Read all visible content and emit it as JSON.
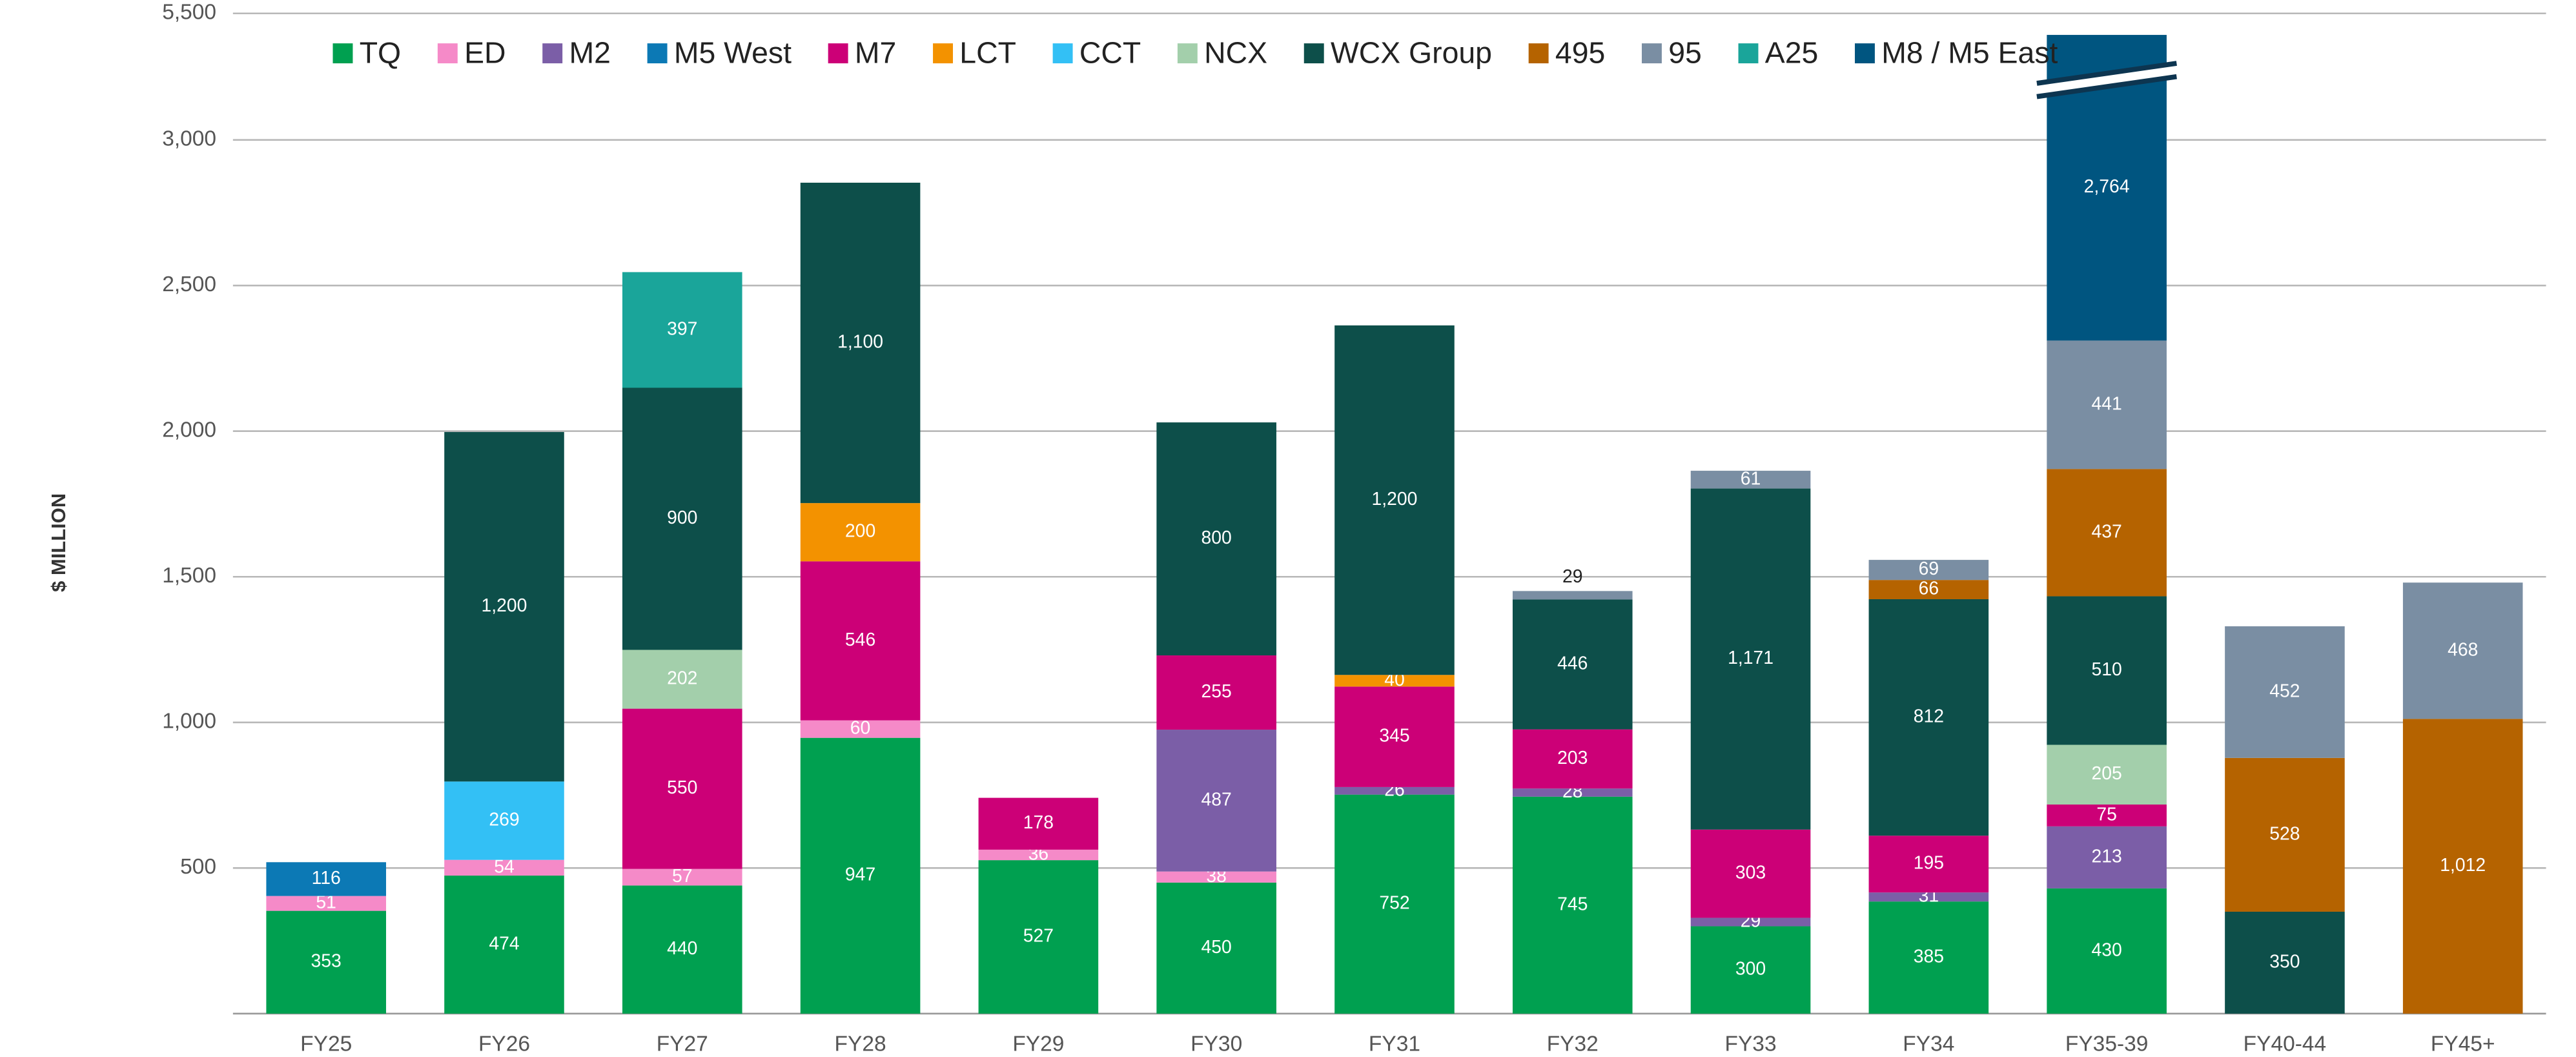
{
  "chart_data": {
    "type": "stacked_bar",
    "y_label": "$ MILLION",
    "categories": [
      "FY25",
      "FY26",
      "FY27",
      "FY28",
      "FY29",
      "FY30",
      "FY31",
      "FY32",
      "FY33",
      "FY34",
      "FY35-39",
      "FY40-44",
      "FY45+"
    ],
    "ylim": [
      0,
      5500
    ],
    "y_break": 3000,
    "yticks": [
      500,
      {
        "value": 1000,
        "label": "1,000"
      },
      {
        "value": 1500,
        "label": "1,500"
      },
      {
        "value": 2000,
        "label": "2,000"
      },
      {
        "value": 2500,
        "label": "2,500"
      },
      {
        "value": 3000,
        "label": "3,000"
      },
      {
        "value": 5500,
        "label": "5,500"
      }
    ],
    "grid": true,
    "legend": "top",
    "series": [
      {
        "name": "TQ",
        "color": "#00a050",
        "values": [
          353,
          474,
          440,
          947,
          527,
          450,
          752,
          745,
          300,
          385,
          430,
          null,
          null
        ]
      },
      {
        "name": "ED",
        "color": "#f58ac8",
        "values": [
          51,
          54,
          57,
          60,
          36,
          38,
          null,
          null,
          null,
          null,
          null,
          null,
          null
        ]
      },
      {
        "name": "M2",
        "color": "#7b5ea7",
        "values": [
          null,
          null,
          null,
          null,
          null,
          487,
          26,
          28,
          29,
          31,
          213,
          null,
          null
        ]
      },
      {
        "name": "M5 West",
        "color": "#0c79b5",
        "values": [
          116,
          null,
          null,
          null,
          null,
          null,
          null,
          null,
          null,
          null,
          null,
          null,
          null
        ]
      },
      {
        "name": "M7",
        "color": "#cc0077",
        "values": [
          null,
          null,
          550,
          546,
          178,
          255,
          345,
          203,
          303,
          195,
          75,
          null,
          null
        ]
      },
      {
        "name": "LCT",
        "color": "#f39200",
        "values": [
          null,
          null,
          null,
          200,
          null,
          null,
          40,
          null,
          null,
          null,
          null,
          null,
          null
        ]
      },
      {
        "name": "CCT",
        "color": "#33c0f5",
        "values": [
          null,
          269,
          null,
          null,
          null,
          null,
          null,
          null,
          null,
          null,
          null,
          null,
          null
        ]
      },
      {
        "name": "NCX",
        "color": "#a3cfab",
        "values": [
          null,
          null,
          202,
          null,
          null,
          null,
          null,
          null,
          null,
          null,
          205,
          null,
          null
        ]
      },
      {
        "name": "WCX Group",
        "color": "#0d4f4a",
        "values": [
          null,
          1200,
          900,
          1100,
          null,
          800,
          1200,
          446,
          1171,
          812,
          510,
          350,
          null
        ],
        "value_labels": [
          null,
          "1,200",
          "900",
          "1,100",
          null,
          "800",
          "1,200",
          "446",
          "1,171",
          "812",
          "510",
          "350",
          null
        ]
      },
      {
        "name": "495",
        "color": "#b56300",
        "values": [
          null,
          null,
          null,
          null,
          null,
          null,
          null,
          null,
          null,
          66,
          437,
          528,
          1012
        ],
        "value_labels": [
          null,
          null,
          null,
          null,
          null,
          null,
          null,
          null,
          null,
          "66",
          "437",
          "528",
          "1,012"
        ]
      },
      {
        "name": "95",
        "color": "#7a8ea3",
        "values": [
          null,
          null,
          null,
          null,
          null,
          null,
          null,
          29,
          61,
          69,
          441,
          452,
          468
        ]
      },
      {
        "name": "A25",
        "color": "#1aa59a",
        "values": [
          null,
          null,
          397,
          null,
          null,
          null,
          null,
          null,
          null,
          null,
          null,
          null,
          null
        ]
      },
      {
        "name": "M8 / M5 East",
        "color": "#005580",
        "values": [
          null,
          null,
          null,
          null,
          null,
          null,
          null,
          null,
          null,
          null,
          2764,
          null,
          null
        ],
        "value_labels": [
          null,
          null,
          null,
          null,
          null,
          null,
          null,
          null,
          null,
          null,
          "2,764",
          null,
          null
        ]
      }
    ]
  }
}
